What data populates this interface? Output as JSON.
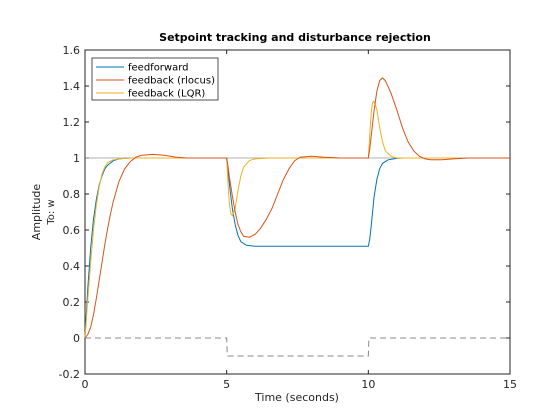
{
  "chart_data": {
    "type": "line",
    "title": "Setpoint tracking and disturbance rejection",
    "xlabel": "Time (seconds)",
    "ylabel": "Amplitude",
    "io_label": "To: w",
    "xlim": [
      0,
      15
    ],
    "ylim": [
      -0.2,
      1.6
    ],
    "xticks": [
      0,
      5,
      10,
      15
    ],
    "yticks": [
      -0.2,
      0,
      0.2,
      0.4,
      0.6,
      0.8,
      1,
      1.2,
      1.4,
      1.6
    ],
    "ytick_labels": [
      "-0.2",
      "0",
      "0.2",
      "0.4",
      "0.6",
      "0.8",
      "1",
      "1.2",
      "1.4",
      "1.6"
    ],
    "grid": false,
    "legend_position": "top-left",
    "colors": {
      "feedforward": "#0072BD",
      "rlocus": "#D95319",
      "lqr": "#EDB120",
      "reference": "#999999",
      "disturbance": "#888888",
      "axes": "#262626"
    },
    "series": [
      {
        "name": "feedforward",
        "color": "#0072BD",
        "points": [
          [
            0,
            0
          ],
          [
            0.1,
            0.28
          ],
          [
            0.2,
            0.5
          ],
          [
            0.3,
            0.66
          ],
          [
            0.4,
            0.77
          ],
          [
            0.5,
            0.85
          ],
          [
            0.6,
            0.9
          ],
          [
            0.7,
            0.94
          ],
          [
            0.8,
            0.96
          ],
          [
            1.0,
            0.985
          ],
          [
            1.2,
            0.995
          ],
          [
            1.6,
            1.0
          ],
          [
            5.0,
            1.0
          ],
          [
            5.05,
            0.93
          ],
          [
            5.1,
            0.85
          ],
          [
            5.2,
            0.72
          ],
          [
            5.3,
            0.63
          ],
          [
            5.4,
            0.57
          ],
          [
            5.5,
            0.535
          ],
          [
            5.7,
            0.515
          ],
          [
            6.0,
            0.51
          ],
          [
            10.0,
            0.51
          ],
          [
            10.05,
            0.55
          ],
          [
            10.1,
            0.62
          ],
          [
            10.2,
            0.78
          ],
          [
            10.3,
            0.88
          ],
          [
            10.4,
            0.94
          ],
          [
            10.5,
            0.97
          ],
          [
            10.7,
            0.99
          ],
          [
            11.0,
            0.998
          ],
          [
            11.2,
            1.0
          ],
          [
            15,
            1.0
          ]
        ]
      },
      {
        "name": "feedback (rlocus)",
        "color": "#D95319",
        "points": [
          [
            0,
            0
          ],
          [
            0.1,
            0.02
          ],
          [
            0.2,
            0.06
          ],
          [
            0.3,
            0.13
          ],
          [
            0.4,
            0.22
          ],
          [
            0.5,
            0.32
          ],
          [
            0.6,
            0.42
          ],
          [
            0.7,
            0.52
          ],
          [
            0.8,
            0.61
          ],
          [
            0.9,
            0.69
          ],
          [
            1.0,
            0.76
          ],
          [
            1.2,
            0.87
          ],
          [
            1.4,
            0.94
          ],
          [
            1.6,
            0.98
          ],
          [
            1.8,
            1.005
          ],
          [
            2.0,
            1.015
          ],
          [
            2.4,
            1.02
          ],
          [
            2.8,
            1.015
          ],
          [
            3.2,
            1.005
          ],
          [
            3.6,
            1.0
          ],
          [
            5.0,
            1.0
          ],
          [
            5.05,
            0.95
          ],
          [
            5.1,
            0.89
          ],
          [
            5.2,
            0.79
          ],
          [
            5.3,
            0.7
          ],
          [
            5.4,
            0.63
          ],
          [
            5.5,
            0.59
          ],
          [
            5.6,
            0.565
          ],
          [
            5.8,
            0.56
          ],
          [
            6.0,
            0.575
          ],
          [
            6.2,
            0.61
          ],
          [
            6.4,
            0.66
          ],
          [
            6.6,
            0.72
          ],
          [
            6.8,
            0.8
          ],
          [
            7.0,
            0.88
          ],
          [
            7.2,
            0.94
          ],
          [
            7.4,
            0.985
          ],
          [
            7.6,
            1.005
          ],
          [
            8.0,
            1.01
          ],
          [
            8.4,
            1.005
          ],
          [
            9.0,
            1.0
          ],
          [
            10.0,
            1.0
          ],
          [
            10.05,
            1.05
          ],
          [
            10.1,
            1.12
          ],
          [
            10.2,
            1.26
          ],
          [
            10.3,
            1.37
          ],
          [
            10.4,
            1.43
          ],
          [
            10.5,
            1.445
          ],
          [
            10.6,
            1.43
          ],
          [
            10.8,
            1.36
          ],
          [
            11.0,
            1.27
          ],
          [
            11.2,
            1.17
          ],
          [
            11.4,
            1.09
          ],
          [
            11.6,
            1.04
          ],
          [
            11.8,
            1.01
          ],
          [
            12.0,
            0.995
          ],
          [
            12.2,
            0.99
          ],
          [
            12.6,
            0.99
          ],
          [
            13.0,
            0.995
          ],
          [
            13.5,
            1.0
          ],
          [
            15,
            1.0
          ]
        ]
      },
      {
        "name": "feedback (LQR)",
        "color": "#EDB120",
        "points": [
          [
            0,
            0
          ],
          [
            0.1,
            0.22
          ],
          [
            0.2,
            0.42
          ],
          [
            0.3,
            0.6
          ],
          [
            0.4,
            0.74
          ],
          [
            0.5,
            0.84
          ],
          [
            0.6,
            0.91
          ],
          [
            0.7,
            0.95
          ],
          [
            0.8,
            0.975
          ],
          [
            1.0,
            0.99
          ],
          [
            1.3,
            0.997
          ],
          [
            1.6,
            1.0
          ],
          [
            5.0,
            1.0
          ],
          [
            5.05,
            0.85
          ],
          [
            5.1,
            0.74
          ],
          [
            5.15,
            0.69
          ],
          [
            5.2,
            0.68
          ],
          [
            5.3,
            0.72
          ],
          [
            5.4,
            0.82
          ],
          [
            5.5,
            0.9
          ],
          [
            5.6,
            0.95
          ],
          [
            5.8,
            0.985
          ],
          [
            6.0,
            0.995
          ],
          [
            6.5,
            1.0
          ],
          [
            10.0,
            1.0
          ],
          [
            10.05,
            1.13
          ],
          [
            10.1,
            1.25
          ],
          [
            10.15,
            1.31
          ],
          [
            10.2,
            1.315
          ],
          [
            10.3,
            1.27
          ],
          [
            10.4,
            1.17
          ],
          [
            10.5,
            1.09
          ],
          [
            10.6,
            1.04
          ],
          [
            10.8,
            1.01
          ],
          [
            11.0,
            1.0
          ],
          [
            15,
            1.0
          ]
        ]
      },
      {
        "name": "reference",
        "color": "#999999",
        "points": [
          [
            0,
            1
          ],
          [
            15,
            1
          ]
        ]
      },
      {
        "name": "disturbance",
        "color": "#888888",
        "dashed": true,
        "points": [
          [
            0,
            0
          ],
          [
            5,
            0
          ],
          [
            5.02,
            -0.1
          ],
          [
            10,
            -0.1
          ],
          [
            10.02,
            0
          ],
          [
            15,
            0
          ]
        ]
      }
    ],
    "legend": [
      "feedforward",
      "feedback (rlocus)",
      "feedback (LQR)"
    ]
  }
}
